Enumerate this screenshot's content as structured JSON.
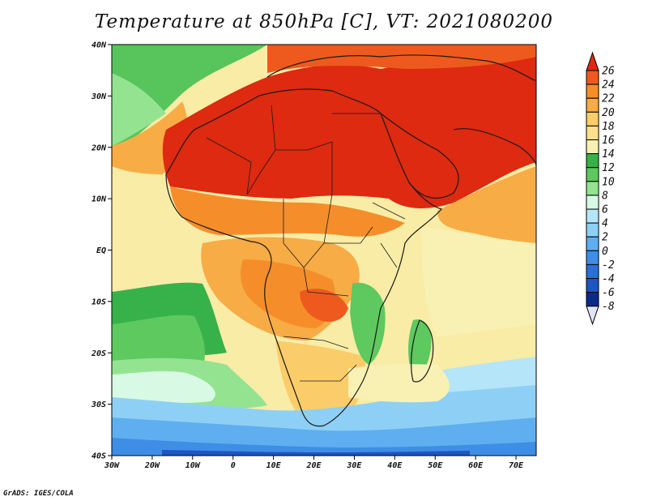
{
  "title": "Temperature at 850hPa [C], VT: 2021080200",
  "footer": "GrADS: IGES/COLA",
  "map": {
    "lon_range": [
      -30,
      75
    ],
    "lat_range": [
      -40,
      45
    ],
    "lon_ticks": [
      "30W",
      "20W",
      "10W",
      "0",
      "10E",
      "20E",
      "30E",
      "40E",
      "50E",
      "60E",
      "70E"
    ],
    "lat_ticks": [
      "40N",
      "30N",
      "20N",
      "10N",
      "EQ",
      "10S",
      "20S",
      "30S",
      "40S"
    ]
  },
  "colorbar": {
    "levels": [
      "26",
      "24",
      "22",
      "20",
      "18",
      "16",
      "14",
      "12",
      "10",
      "8",
      "6",
      "4",
      "2",
      "0",
      "-2",
      "-4",
      "-6",
      "-8"
    ],
    "colors": [
      "#dd2a10",
      "#ee5a1e",
      "#f58e2a",
      "#f7ac46",
      "#fbcd6a",
      "#fde08a",
      "#f9f1b3",
      "#37b24a",
      "#5dc95e",
      "#93e391",
      "#d8f9e4",
      "#b5e5f8",
      "#8ed0f5",
      "#5faef0",
      "#3f8ee5",
      "#2a70d6",
      "#1c56c3",
      "#0c2a8a"
    ]
  }
}
